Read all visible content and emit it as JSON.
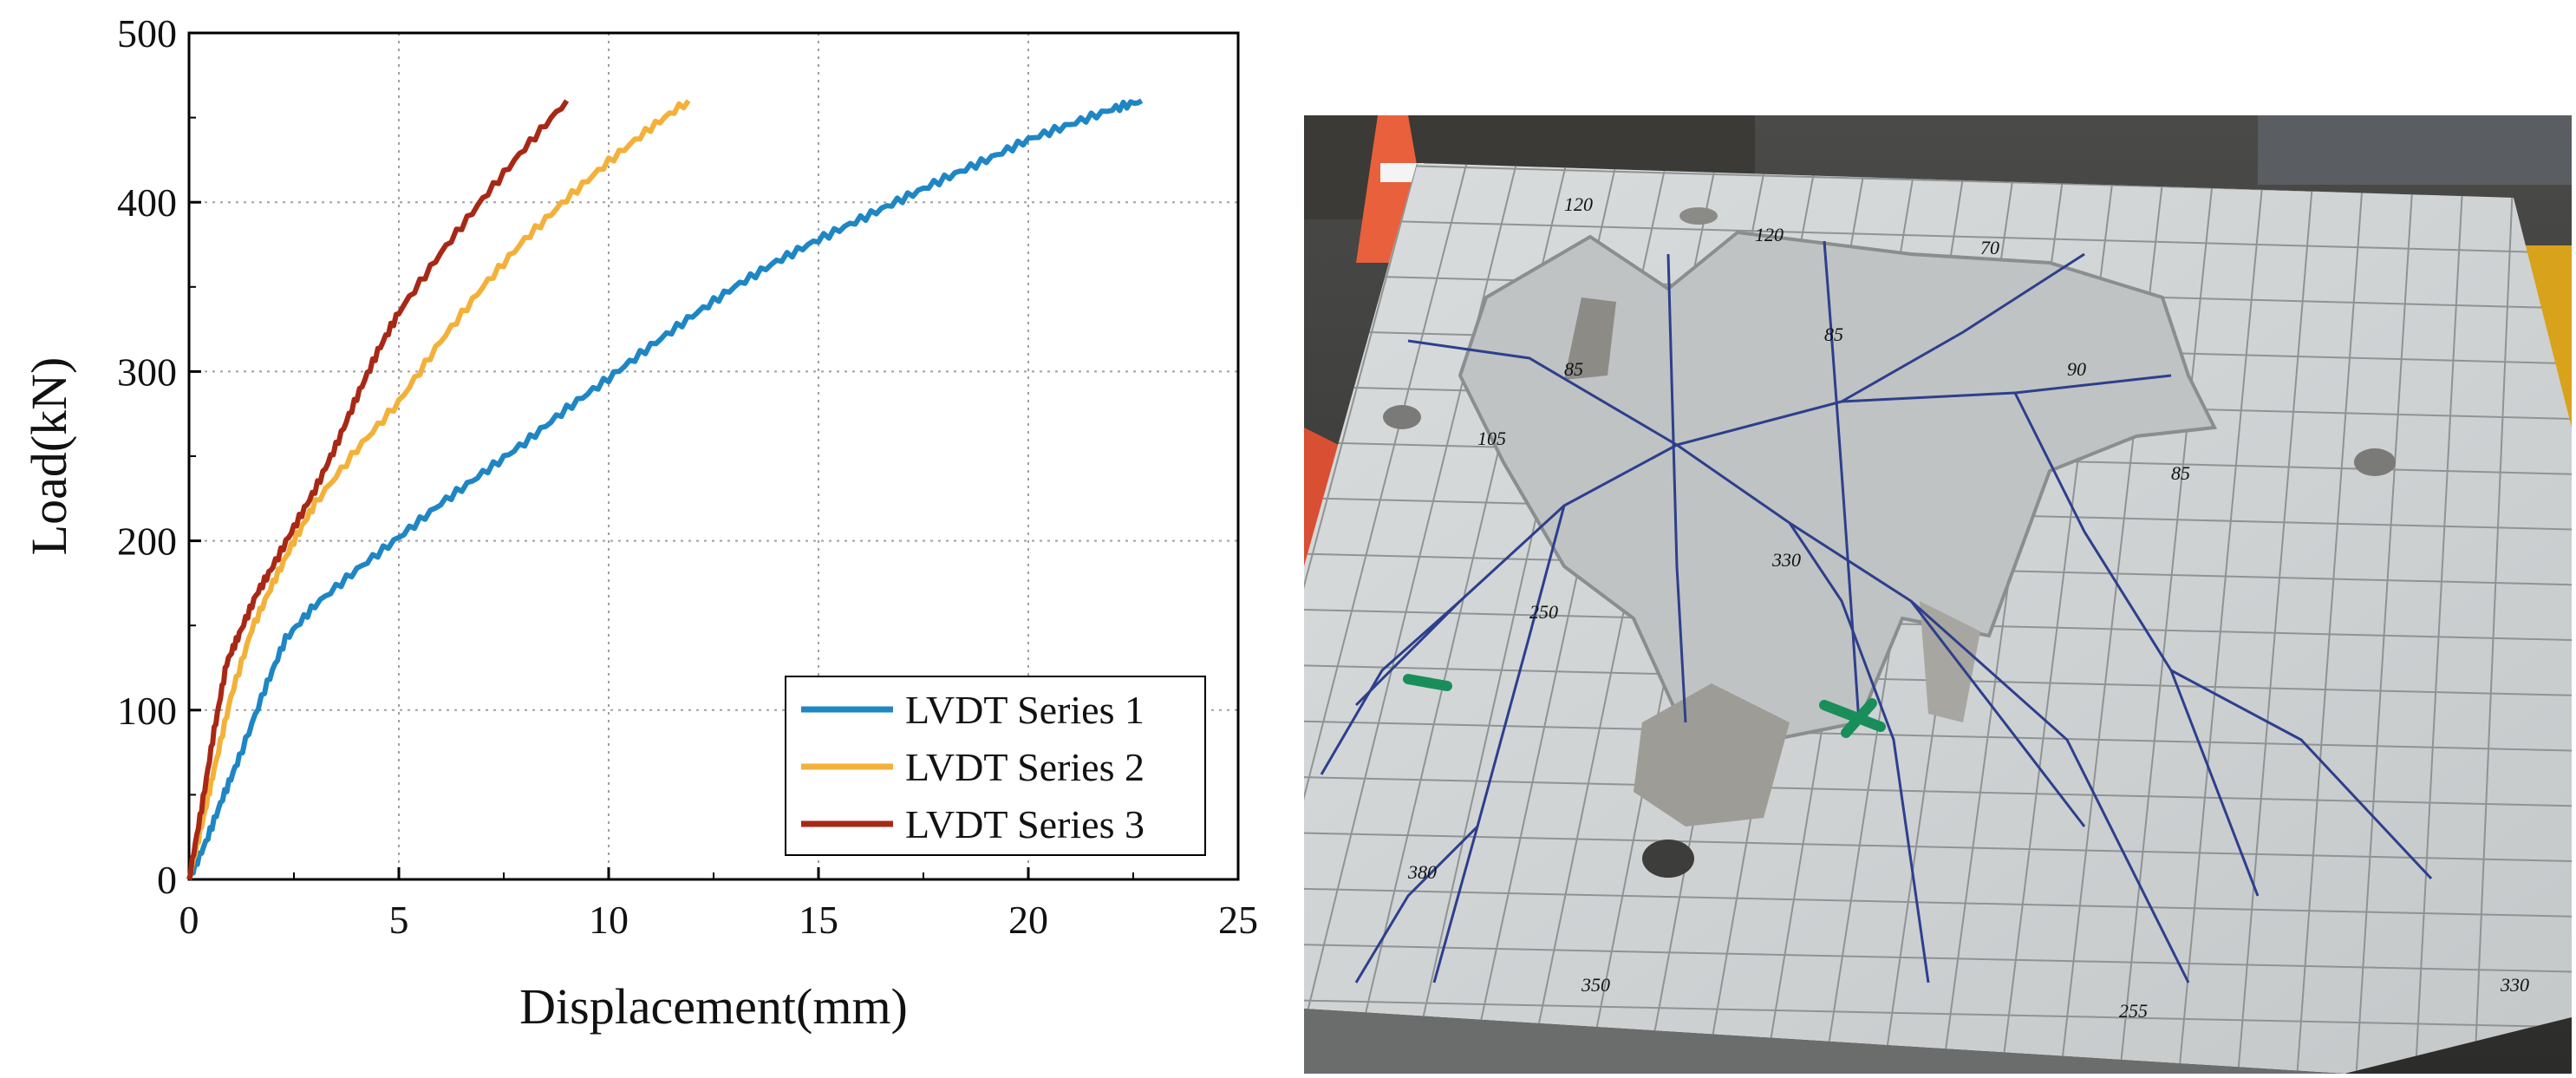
{
  "chart_data": {
    "type": "line",
    "xlabel": "Displacement(mm)",
    "ylabel": "Load(kN)",
    "xlim": [
      0,
      25
    ],
    "ylim": [
      0,
      500
    ],
    "xticks": [
      "0",
      "5",
      "10",
      "15",
      "20",
      "25"
    ],
    "yticks": [
      "0",
      "100",
      "200",
      "300",
      "400",
      "500"
    ],
    "grid": true,
    "legend_position": "bottom-right",
    "series": [
      {
        "name": "LVDT Series 1",
        "color": "#1f86c4",
        "x": [
          0,
          0.4,
          0.8,
          1.2,
          1.8,
          2.3,
          3,
          4,
          5,
          6,
          7,
          8,
          9,
          10,
          11,
          12,
          13,
          14,
          15,
          16,
          17,
          18,
          19,
          20,
          21,
          22,
          22.7
        ],
        "y": [
          0,
          22,
          48,
          72,
          112,
          142,
          162,
          183,
          202,
          222,
          240,
          258,
          278,
          296,
          315,
          333,
          350,
          365,
          378,
          390,
          402,
          414,
          425,
          437,
          446,
          455,
          460
        ]
      },
      {
        "name": "LVDT Series 2",
        "color": "#f3b139",
        "x": [
          0,
          0.3,
          0.6,
          1,
          1.5,
          2,
          2.5,
          3,
          4,
          5,
          6,
          7,
          8,
          9,
          10,
          11,
          11.9
        ],
        "y": [
          0,
          32,
          65,
          108,
          148,
          175,
          200,
          222,
          254,
          282,
          318,
          350,
          378,
          402,
          424,
          444,
          460
        ]
      },
      {
        "name": "LVDT Series 3",
        "color": "#a82816",
        "x": [
          0,
          0.3,
          0.6,
          0.9,
          1.2,
          1.6,
          2,
          2.5,
          3,
          3.5,
          4,
          4.5,
          5,
          6,
          7,
          8,
          9
        ],
        "y": [
          0,
          42,
          88,
          128,
          145,
          168,
          185,
          208,
          230,
          256,
          285,
          312,
          335,
          370,
          402,
          432,
          460
        ]
      }
    ]
  },
  "photo": {
    "grid_labels": [
      "120",
      "120",
      "70",
      "85",
      "85",
      "90",
      "105",
      "85",
      "250",
      "330",
      "380",
      "350",
      "255",
      "330"
    ]
  }
}
